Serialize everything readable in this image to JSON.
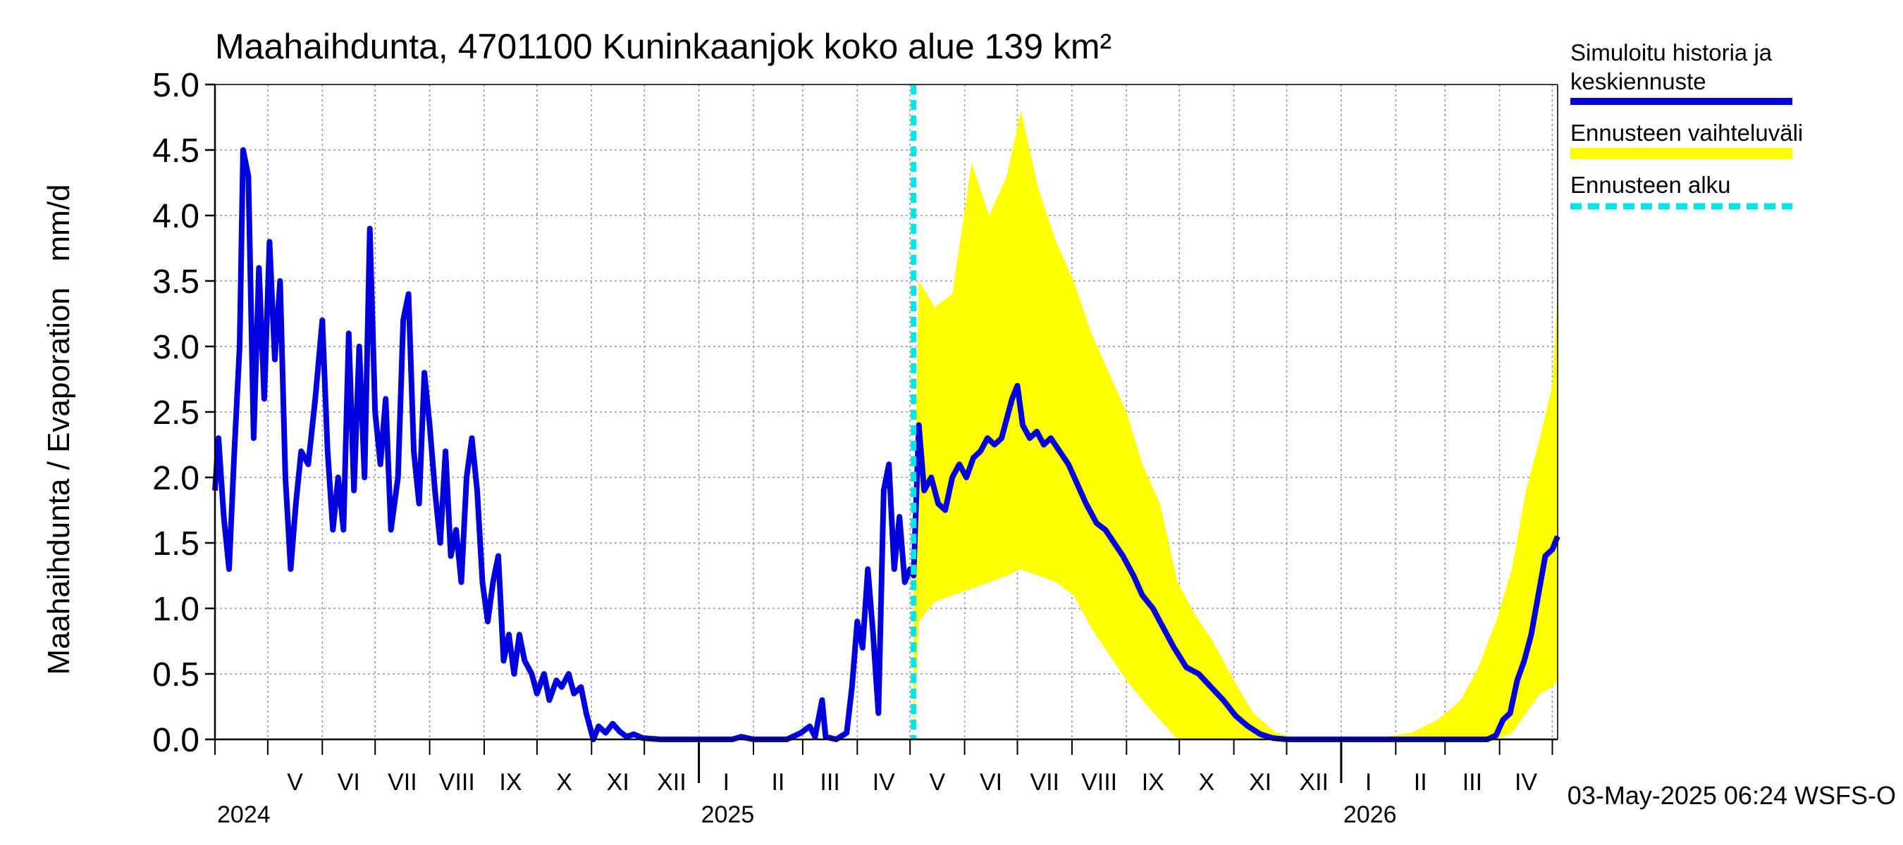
{
  "chart_data": {
    "type": "line",
    "title": "Maahaihdunta, 4701100 Kuninkaanjok koko alue 139 km²",
    "ylabel": "Maahaihdunta / Evaporation   mm/d",
    "ylim": [
      0,
      5
    ],
    "yticks": [
      "0.0",
      "0.5",
      "1.0",
      "1.5",
      "2.0",
      "2.5",
      "3.0",
      "3.5",
      "4.0",
      "4.5",
      "5.0"
    ],
    "xlim": [
      "2024-04-01",
      "2026-05-04"
    ],
    "month_labels": [
      "V",
      "VI",
      "VII",
      "VIII",
      "IX",
      "X",
      "XI",
      "XII",
      "I",
      "II",
      "III",
      "IV",
      "V",
      "VI",
      "VII",
      "VIII",
      "IX",
      "X",
      "XI",
      "XII",
      "I",
      "II",
      "III",
      "IV"
    ],
    "year_labels": [
      "2024",
      "2025",
      "2026"
    ],
    "forecast_start": "2025-05-03",
    "grid": true,
    "legend_position": "right",
    "legend": [
      {
        "label_line1": "Simuloitu historia ja",
        "label_line2": "keskiennuste",
        "color": "#0000dd",
        "style": "solid"
      },
      {
        "label_line1": "Ennusteen vaihteluväli",
        "label_line2": "",
        "color": "#ffff00",
        "style": "band"
      },
      {
        "label_line1": "Ennusteen alku",
        "label_line2": "",
        "color": "#00e5e5",
        "style": "dashed"
      }
    ],
    "footer": "03-May-2025 06:24 WSFS-O",
    "colors": {
      "history": "#0000dd",
      "band": "#ffff00",
      "forecast_start": "#00e5e5",
      "grid": "#999999"
    },
    "series": [
      {
        "name": "Simuloitu historia ja keskiennuste",
        "points": [
          [
            "2024-04-01",
            1.9
          ],
          [
            "2024-04-03",
            2.3
          ],
          [
            "2024-04-06",
            1.7
          ],
          [
            "2024-04-09",
            1.3
          ],
          [
            "2024-04-12",
            2.2
          ],
          [
            "2024-04-15",
            3.0
          ],
          [
            "2024-04-17",
            4.5
          ],
          [
            "2024-04-20",
            4.3
          ],
          [
            "2024-04-23",
            2.3
          ],
          [
            "2024-04-26",
            3.6
          ],
          [
            "2024-04-29",
            2.6
          ],
          [
            "2024-05-02",
            3.8
          ],
          [
            "2024-05-05",
            2.9
          ],
          [
            "2024-05-08",
            3.5
          ],
          [
            "2024-05-11",
            2.0
          ],
          [
            "2024-05-14",
            1.3
          ],
          [
            "2024-05-17",
            1.8
          ],
          [
            "2024-05-20",
            2.2
          ],
          [
            "2024-05-24",
            2.1
          ],
          [
            "2024-05-28",
            2.6
          ],
          [
            "2024-06-01",
            3.2
          ],
          [
            "2024-06-04",
            2.2
          ],
          [
            "2024-06-07",
            1.6
          ],
          [
            "2024-06-10",
            2.0
          ],
          [
            "2024-06-13",
            1.6
          ],
          [
            "2024-06-16",
            3.1
          ],
          [
            "2024-06-19",
            1.9
          ],
          [
            "2024-06-22",
            3.0
          ],
          [
            "2024-06-25",
            2.0
          ],
          [
            "2024-06-28",
            3.9
          ],
          [
            "2024-07-01",
            2.5
          ],
          [
            "2024-07-04",
            2.1
          ],
          [
            "2024-07-07",
            2.6
          ],
          [
            "2024-07-10",
            1.6
          ],
          [
            "2024-07-14",
            2.0
          ],
          [
            "2024-07-17",
            3.2
          ],
          [
            "2024-07-20",
            3.4
          ],
          [
            "2024-07-23",
            2.2
          ],
          [
            "2024-07-26",
            1.8
          ],
          [
            "2024-07-29",
            2.8
          ],
          [
            "2024-08-01",
            2.4
          ],
          [
            "2024-08-04",
            1.9
          ],
          [
            "2024-08-07",
            1.5
          ],
          [
            "2024-08-10",
            2.2
          ],
          [
            "2024-08-13",
            1.4
          ],
          [
            "2024-08-16",
            1.6
          ],
          [
            "2024-08-19",
            1.2
          ],
          [
            "2024-08-22",
            2.0
          ],
          [
            "2024-08-25",
            2.3
          ],
          [
            "2024-08-28",
            1.9
          ],
          [
            "2024-08-31",
            1.2
          ],
          [
            "2024-09-03",
            0.9
          ],
          [
            "2024-09-06",
            1.2
          ],
          [
            "2024-09-09",
            1.4
          ],
          [
            "2024-09-12",
            0.6
          ],
          [
            "2024-09-15",
            0.8
          ],
          [
            "2024-09-18",
            0.5
          ],
          [
            "2024-09-21",
            0.8
          ],
          [
            "2024-09-24",
            0.6
          ],
          [
            "2024-09-28",
            0.5
          ],
          [
            "2024-10-01",
            0.35
          ],
          [
            "2024-10-05",
            0.5
          ],
          [
            "2024-10-08",
            0.3
          ],
          [
            "2024-10-12",
            0.45
          ],
          [
            "2024-10-15",
            0.4
          ],
          [
            "2024-10-19",
            0.5
          ],
          [
            "2024-10-22",
            0.35
          ],
          [
            "2024-10-26",
            0.4
          ],
          [
            "2024-10-29",
            0.2
          ],
          [
            "2024-11-02",
            0.0
          ],
          [
            "2024-11-05",
            0.1
          ],
          [
            "2024-11-09",
            0.05
          ],
          [
            "2024-11-13",
            0.12
          ],
          [
            "2024-11-17",
            0.06
          ],
          [
            "2024-11-21",
            0.02
          ],
          [
            "2024-11-25",
            0.04
          ],
          [
            "2024-11-30",
            0.01
          ],
          [
            "2024-12-10",
            0.0
          ],
          [
            "2024-12-31",
            0.0
          ],
          [
            "2025-01-20",
            0.0
          ],
          [
            "2025-01-25",
            0.02
          ],
          [
            "2025-02-01",
            0.0
          ],
          [
            "2025-02-20",
            0.0
          ],
          [
            "2025-02-28",
            0.05
          ],
          [
            "2025-03-05",
            0.1
          ],
          [
            "2025-03-08",
            0.02
          ],
          [
            "2025-03-12",
            0.3
          ],
          [
            "2025-03-14",
            0.02
          ],
          [
            "2025-03-20",
            0.0
          ],
          [
            "2025-03-26",
            0.05
          ],
          [
            "2025-03-29",
            0.4
          ],
          [
            "2025-04-01",
            0.9
          ],
          [
            "2025-04-04",
            0.7
          ],
          [
            "2025-04-07",
            1.3
          ],
          [
            "2025-04-10",
            0.8
          ],
          [
            "2025-04-13",
            0.2
          ],
          [
            "2025-04-16",
            1.9
          ],
          [
            "2025-04-19",
            2.1
          ],
          [
            "2025-04-22",
            1.3
          ],
          [
            "2025-04-25",
            1.7
          ],
          [
            "2025-04-28",
            1.2
          ],
          [
            "2025-05-01",
            1.3
          ],
          [
            "2025-05-03",
            1.25
          ],
          [
            "2025-05-06",
            2.4
          ],
          [
            "2025-05-09",
            1.9
          ],
          [
            "2025-05-13",
            2.0
          ],
          [
            "2025-05-17",
            1.8
          ],
          [
            "2025-05-21",
            1.75
          ],
          [
            "2025-05-25",
            2.0
          ],
          [
            "2025-05-29",
            2.1
          ],
          [
            "2025-06-02",
            2.0
          ],
          [
            "2025-06-06",
            2.15
          ],
          [
            "2025-06-10",
            2.2
          ],
          [
            "2025-06-14",
            2.3
          ],
          [
            "2025-06-18",
            2.25
          ],
          [
            "2025-06-22",
            2.3
          ],
          [
            "2025-06-25",
            2.45
          ],
          [
            "2025-06-28",
            2.6
          ],
          [
            "2025-07-01",
            2.7
          ],
          [
            "2025-07-04",
            2.4
          ],
          [
            "2025-07-08",
            2.3
          ],
          [
            "2025-07-12",
            2.35
          ],
          [
            "2025-07-16",
            2.25
          ],
          [
            "2025-07-20",
            2.3
          ],
          [
            "2025-07-25",
            2.2
          ],
          [
            "2025-07-30",
            2.1
          ],
          [
            "2025-08-04",
            1.95
          ],
          [
            "2025-08-09",
            1.8
          ],
          [
            "2025-08-15",
            1.65
          ],
          [
            "2025-08-20",
            1.6
          ],
          [
            "2025-08-25",
            1.5
          ],
          [
            "2025-08-30",
            1.4
          ],
          [
            "2025-09-05",
            1.25
          ],
          [
            "2025-09-10",
            1.1
          ],
          [
            "2025-09-16",
            1.0
          ],
          [
            "2025-09-22",
            0.85
          ],
          [
            "2025-09-28",
            0.7
          ],
          [
            "2025-10-05",
            0.55
          ],
          [
            "2025-10-12",
            0.5
          ],
          [
            "2025-10-19",
            0.4
          ],
          [
            "2025-10-26",
            0.3
          ],
          [
            "2025-11-02",
            0.18
          ],
          [
            "2025-11-09",
            0.1
          ],
          [
            "2025-11-16",
            0.04
          ],
          [
            "2025-11-23",
            0.01
          ],
          [
            "2025-12-01",
            0.0
          ],
          [
            "2026-01-01",
            0.0
          ],
          [
            "2026-02-01",
            0.0
          ],
          [
            "2026-03-01",
            0.0
          ],
          [
            "2026-03-25",
            0.0
          ],
          [
            "2026-03-30",
            0.03
          ],
          [
            "2026-04-03",
            0.15
          ],
          [
            "2026-04-07",
            0.2
          ],
          [
            "2026-04-11",
            0.45
          ],
          [
            "2026-04-15",
            0.6
          ],
          [
            "2026-04-19",
            0.8
          ],
          [
            "2026-04-23",
            1.1
          ],
          [
            "2026-04-27",
            1.4
          ],
          [
            "2026-05-01",
            1.45
          ],
          [
            "2026-05-04",
            1.55
          ]
        ]
      },
      {
        "name": "Ennusteen vaihteluväli",
        "band": [
          [
            "2025-05-03",
            0.0,
            1.5
          ],
          [
            "2025-05-06",
            0.9,
            3.5
          ],
          [
            "2025-05-15",
            1.05,
            3.3
          ],
          [
            "2025-05-25",
            1.1,
            3.4
          ],
          [
            "2025-06-05",
            1.15,
            4.4
          ],
          [
            "2025-06-15",
            1.2,
            4.0
          ],
          [
            "2025-06-25",
            1.25,
            4.3
          ],
          [
            "2025-07-03",
            1.3,
            4.8
          ],
          [
            "2025-07-13",
            1.25,
            4.2
          ],
          [
            "2025-07-23",
            1.2,
            3.8
          ],
          [
            "2025-08-02",
            1.1,
            3.5
          ],
          [
            "2025-08-12",
            0.85,
            3.1
          ],
          [
            "2025-08-22",
            0.65,
            2.8
          ],
          [
            "2025-09-01",
            0.45,
            2.5
          ],
          [
            "2025-09-10",
            0.3,
            2.1
          ],
          [
            "2025-09-20",
            0.15,
            1.8
          ],
          [
            "2025-09-30",
            0.0,
            1.2
          ],
          [
            "2025-10-10",
            0.0,
            0.95
          ],
          [
            "2025-10-20",
            0.0,
            0.75
          ],
          [
            "2025-11-01",
            0.0,
            0.45
          ],
          [
            "2025-11-12",
            0.0,
            0.2
          ],
          [
            "2025-11-25",
            0.0,
            0.05
          ],
          [
            "2025-12-10",
            0.0,
            0.0
          ],
          [
            "2026-01-15",
            0.0,
            0.0
          ],
          [
            "2026-02-10",
            0.0,
            0.05
          ],
          [
            "2026-02-25",
            0.0,
            0.15
          ],
          [
            "2026-03-10",
            0.0,
            0.3
          ],
          [
            "2026-03-20",
            0.0,
            0.55
          ],
          [
            "2026-03-30",
            0.0,
            0.9
          ],
          [
            "2026-04-08",
            0.05,
            1.3
          ],
          [
            "2026-04-16",
            0.2,
            1.9
          ],
          [
            "2026-04-24",
            0.35,
            2.3
          ],
          [
            "2026-05-01",
            0.4,
            2.7
          ],
          [
            "2026-05-04",
            0.45,
            3.4
          ]
        ]
      }
    ]
  }
}
